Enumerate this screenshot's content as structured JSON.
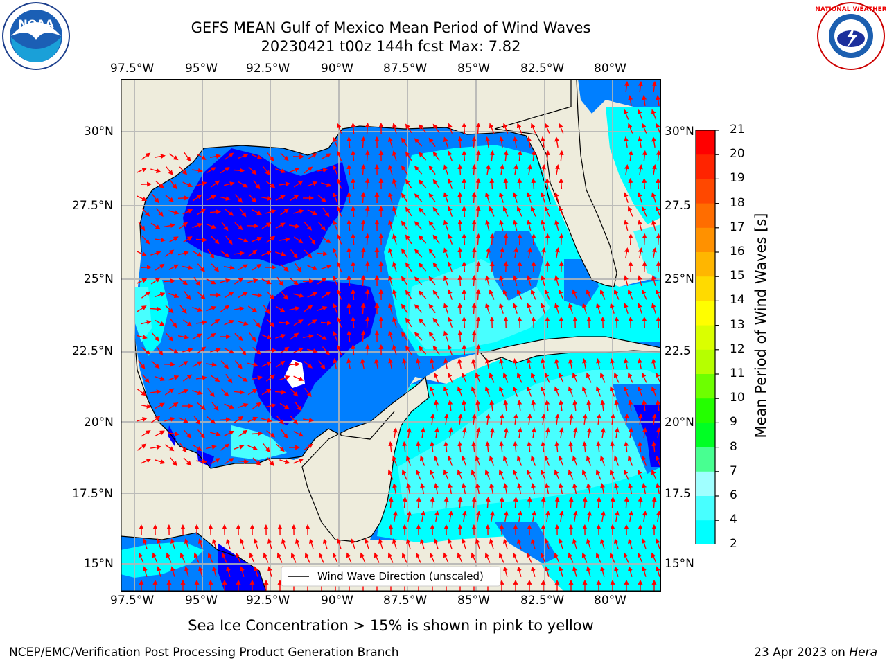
{
  "title": {
    "line1": "GEFS MEAN Gulf of Mexico Mean Period of Wind Waves",
    "line2": "20230421 t00z 144h fcst   Max: 7.82"
  },
  "map": {
    "lon_labels_top": [
      "97.5°W",
      "95°W",
      "92.5°W",
      "90°W",
      "87.5°W",
      "85°W",
      "82.5°W",
      "80°W"
    ],
    "lon_labels_bottom": [
      "97.5°W",
      "95°W",
      "92.5°W",
      "90°W",
      "87.5°W",
      "85°W",
      "82.5°W",
      "80°W"
    ],
    "lat_labels_left": [
      "30°N",
      "27.5°N",
      "25°N",
      "22.5°N",
      "20°N",
      "17.5°N",
      "15°N"
    ],
    "lat_labels_right": [
      "30°N",
      "27.5",
      "25°N",
      "22.5",
      "20°N",
      "17.5",
      "15°N"
    ],
    "legend": "Wind Wave Direction (unscaled)",
    "colors": {
      "land": "#eeecdc",
      "arrow": "#ff0000",
      "grid": "#b4b4b4"
    }
  },
  "colorbar": {
    "title": "Mean Period of Wind Waves [s]",
    "ticks": [
      "21",
      "20",
      "19",
      "18",
      "17",
      "16",
      "15",
      "14",
      "13",
      "12",
      "11",
      "10",
      "9",
      "8",
      "7",
      "6",
      "4",
      "2"
    ],
    "colors": [
      "#ff0000",
      "#ff2400",
      "#ff4800",
      "#ff6d00",
      "#ff9100",
      "#ffb600",
      "#ffda00",
      "#fffe00",
      "#daff00",
      "#b6ff00",
      "#6dff00",
      "#24ff00",
      "#00ff24",
      "#48ff91",
      "#a0ffff",
      "#48ffff",
      "#00ffff",
      "#007fff",
      "#0000ff"
    ]
  },
  "caption": "Sea Ice Concentration > 15% is shown in pink to yellow",
  "footer": {
    "left": "NCEP/EMC/Verification Post Processing Product Generation Branch",
    "right_prefix": "23 Apr 2023 on ",
    "right_host": "Hera"
  }
}
